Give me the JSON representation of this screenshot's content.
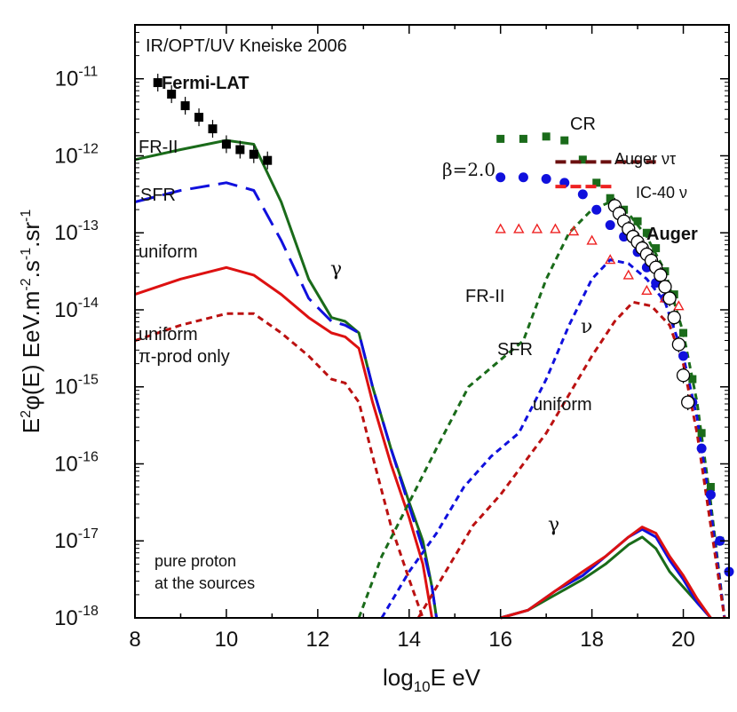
{
  "chart_data": {
    "type": "line",
    "title": "IR/OPT/UV Kneiske 2006",
    "xlabel": "log10E eV",
    "ylabel": "E2φ(E) EeV.m-2.s-1.sr-1",
    "xlim": [
      8,
      21
    ],
    "ylim_log10": [
      -18,
      -10.3
    ],
    "x_ticks": [
      8,
      10,
      12,
      14,
      16,
      18,
      20
    ],
    "y_ticks_log10": [
      -11,
      -12,
      -13,
      -14,
      -15,
      -16,
      -17,
      -18
    ],
    "y_tick_base": "10",
    "series": [
      {
        "name": "FR-II gamma",
        "color": "#1a6b1a",
        "dash": "solid",
        "x": [
          8,
          9,
          10,
          10.6,
          11.2,
          11.8,
          12.3,
          12.6,
          12.9,
          13.2,
          13.6,
          14.0,
          14.3,
          14.5,
          14.6
        ],
        "log10y": [
          -12.05,
          -11.92,
          -11.8,
          -11.85,
          -12.6,
          -13.6,
          -14.1,
          -14.15,
          -14.3,
          -15.0,
          -15.8,
          -16.5,
          -17.0,
          -17.6,
          -18.0
        ]
      },
      {
        "name": "SFR gamma",
        "color": "#1010dd",
        "dash": "longdash",
        "x": [
          8,
          9,
          10,
          10.6,
          11.2,
          11.8,
          12.3,
          12.6,
          12.9,
          13.2,
          13.6,
          14.0,
          14.3,
          14.5,
          14.6
        ],
        "log10y": [
          -12.6,
          -12.45,
          -12.35,
          -12.45,
          -13.1,
          -13.85,
          -14.15,
          -14.2,
          -14.3,
          -15.0,
          -15.8,
          -16.55,
          -17.1,
          -17.6,
          -18.0
        ]
      },
      {
        "name": "uniform gamma",
        "color": "#dd1111",
        "dash": "solid",
        "x": [
          8,
          9,
          10,
          10.6,
          11.2,
          11.8,
          12.3,
          12.6,
          12.9,
          13.2,
          13.6,
          14.0,
          14.3,
          14.5
        ],
        "log10y": [
          -13.8,
          -13.6,
          -13.45,
          -13.55,
          -13.8,
          -14.1,
          -14.3,
          -14.35,
          -14.5,
          -15.2,
          -16.0,
          -16.7,
          -17.3,
          -18.0
        ]
      },
      {
        "name": "uniform pi-prod only gamma",
        "color": "#bb1111",
        "dash": "short",
        "x": [
          8,
          9,
          10,
          10.6,
          11.2,
          11.8,
          12.3,
          12.6,
          12.9,
          13.2,
          13.6,
          14.0,
          14.3
        ],
        "log10y": [
          -14.4,
          -14.2,
          -14.05,
          -14.05,
          -14.3,
          -14.6,
          -14.9,
          -14.95,
          -15.2,
          -15.9,
          -16.8,
          -17.5,
          -18.0
        ]
      },
      {
        "name": "FR-II nu",
        "color": "#1a6b1a",
        "dash": "short",
        "x": [
          12.9,
          13.4,
          14.0,
          14.6,
          15.3,
          15.9,
          16.5,
          17.0,
          17.5,
          18.0,
          18.4,
          18.8,
          19.2,
          19.6,
          20.0,
          20.3,
          20.6,
          20.9
        ],
        "log10y": [
          -18.0,
          -17.2,
          -16.5,
          -15.8,
          -15.0,
          -14.7,
          -14.4,
          -13.6,
          -13.0,
          -12.7,
          -12.6,
          -12.75,
          -13.05,
          -13.5,
          -14.3,
          -15.2,
          -16.5,
          -18.0
        ]
      },
      {
        "name": "SFR nu",
        "color": "#1010dd",
        "dash": "short",
        "x": [
          13.4,
          14.0,
          14.6,
          15.2,
          15.8,
          16.4,
          17.0,
          17.5,
          18.0,
          18.4,
          18.8,
          19.2,
          19.6,
          20.0,
          20.3,
          20.6,
          20.9
        ],
        "log10y": [
          -18.0,
          -17.4,
          -16.9,
          -16.3,
          -15.9,
          -15.6,
          -14.9,
          -14.2,
          -13.6,
          -13.35,
          -13.4,
          -13.6,
          -13.9,
          -14.6,
          -15.4,
          -16.6,
          -18.0
        ]
      },
      {
        "name": "uniform nu",
        "color": "#bb1111",
        "dash": "short",
        "x": [
          14.2,
          14.8,
          15.4,
          16.0,
          16.5,
          17.0,
          17.5,
          18.0,
          18.5,
          18.9,
          19.3,
          19.7,
          20.0,
          20.3,
          20.6,
          20.9
        ],
        "log10y": [
          -18.0,
          -17.4,
          -16.8,
          -16.4,
          -16.0,
          -15.6,
          -15.1,
          -14.6,
          -14.15,
          -13.9,
          -13.95,
          -14.2,
          -14.7,
          -15.6,
          -16.8,
          -18.0
        ]
      },
      {
        "name": "FR-II gamma UHE",
        "color": "#1a6b1a",
        "dash": "solid",
        "x": [
          16,
          16.6,
          17.2,
          17.8,
          18.3,
          18.8,
          19.1,
          19.4,
          19.7,
          20.0,
          20.3,
          20.6
        ],
        "log10y": [
          -18.0,
          -17.9,
          -17.7,
          -17.5,
          -17.3,
          -17.05,
          -16.95,
          -17.1,
          -17.4,
          -17.6,
          -17.8,
          -18.0
        ]
      },
      {
        "name": "SFR gamma UHE",
        "color": "#1010dd",
        "dash": "solid",
        "x": [
          16,
          16.6,
          17.2,
          17.8,
          18.3,
          18.8,
          19.1,
          19.4,
          19.7,
          20.0,
          20.3,
          20.6
        ],
        "log10y": [
          -18.0,
          -17.9,
          -17.65,
          -17.45,
          -17.2,
          -16.95,
          -16.85,
          -16.95,
          -17.25,
          -17.5,
          -17.8,
          -18.0
        ]
      },
      {
        "name": "uniform gamma UHE",
        "color": "#dd1111",
        "dash": "solid",
        "x": [
          16,
          16.6,
          17.2,
          17.8,
          18.3,
          18.8,
          19.1,
          19.4,
          19.7,
          20.0,
          20.3,
          20.6
        ],
        "log10y": [
          -18.0,
          -17.9,
          -17.65,
          -17.4,
          -17.2,
          -16.95,
          -16.82,
          -16.9,
          -17.2,
          -17.45,
          -17.75,
          -18.0
        ]
      }
    ],
    "marker_series": [
      {
        "name": "CR FR-II",
        "color": "#1a6b1a",
        "marker": "square",
        "x": [
          16,
          16.5,
          17.0,
          17.4,
          17.8,
          18.1,
          18.4,
          18.7,
          19.0,
          19.2,
          19.4,
          19.6,
          19.8,
          20.0,
          20.2,
          20.4,
          20.6,
          20.8
        ],
        "log10y": [
          -11.78,
          -11.78,
          -11.75,
          -11.8,
          -12.05,
          -12.35,
          -12.55,
          -12.7,
          -12.85,
          -13.0,
          -13.2,
          -13.5,
          -13.8,
          -14.3,
          -14.9,
          -15.6,
          -16.3,
          -17.0
        ]
      },
      {
        "name": "CR SFR",
        "color": "#1010dd",
        "marker": "circle",
        "x": [
          16,
          16.5,
          17.0,
          17.4,
          17.8,
          18.1,
          18.4,
          18.7,
          19.0,
          19.2,
          19.4,
          19.6,
          19.8,
          20.0,
          20.2,
          20.4,
          20.6,
          20.8,
          21.0
        ],
        "log10y": [
          -12.28,
          -12.28,
          -12.3,
          -12.35,
          -12.5,
          -12.7,
          -12.9,
          -13.05,
          -13.25,
          -13.45,
          -13.65,
          -13.85,
          -14.1,
          -14.6,
          -15.2,
          -15.8,
          -16.4,
          -17.0,
          -17.4
        ]
      },
      {
        "name": "CR uniform",
        "color": "#ee2222",
        "marker": "triangle",
        "x": [
          16,
          16.4,
          16.8,
          17.2,
          17.6,
          18.0,
          18.4,
          18.8,
          19.2,
          19.6,
          19.9
        ],
        "log10y": [
          -12.95,
          -12.95,
          -12.95,
          -12.95,
          -12.98,
          -13.1,
          -13.35,
          -13.55,
          -13.75,
          -13.85,
          -13.95
        ]
      },
      {
        "name": "Fermi-LAT",
        "color": "#000000",
        "marker": "filled-square",
        "x": [
          8.5,
          8.8,
          9.1,
          9.4,
          9.7,
          10.0,
          10.3,
          10.6,
          10.9
        ],
        "log10y": [
          -11.05,
          -11.2,
          -11.35,
          -11.5,
          -11.65,
          -11.85,
          -11.92,
          -11.98,
          -12.06
        ]
      },
      {
        "name": "Auger",
        "color": "#000000",
        "marker": "open-circle",
        "x": [
          18.5,
          18.6,
          18.7,
          18.8,
          18.9,
          19.0,
          19.1,
          19.2,
          19.3,
          19.4,
          19.5,
          19.6,
          19.7,
          19.8,
          19.9,
          20.0,
          20.1
        ],
        "log10y": [
          -12.65,
          -12.75,
          -12.85,
          -12.95,
          -13.05,
          -13.12,
          -13.2,
          -13.28,
          -13.36,
          -13.45,
          -13.55,
          -13.7,
          -13.85,
          -14.1,
          -14.45,
          -14.85,
          -15.2
        ]
      }
    ],
    "limits": [
      {
        "name": "Auger ντ",
        "color": "#6b1010",
        "x": [
          17.2,
          19.4
        ],
        "log10y": -12.08
      },
      {
        "name": "IC-40 ν",
        "color": "#ee2222",
        "x": [
          17.2,
          18.5
        ],
        "log10y": -12.4
      }
    ],
    "annotations": {
      "title": "IR/OPT/UV Kneiske 2006",
      "fermi": "Fermi-LAT",
      "fr2_gamma": "FR-II",
      "sfr_gamma": "SFR",
      "uniform_gamma": "uniform",
      "uniform_pi_1": "uniform",
      "uniform_pi_2": "π-prod only",
      "gamma_low": "γ",
      "beta": "β=2.0",
      "cr": "CR",
      "auger_nutau": "Auger ντ",
      "ic40": "IC-40 ν",
      "auger": "Auger",
      "fr2_nu": "FR-II",
      "sfr_nu": "SFR",
      "uniform_nu": "uniform",
      "nu": "ν",
      "gamma_high": "γ",
      "pure_proton_1": "pure proton",
      "pure_proton_2": "at the sources"
    }
  }
}
